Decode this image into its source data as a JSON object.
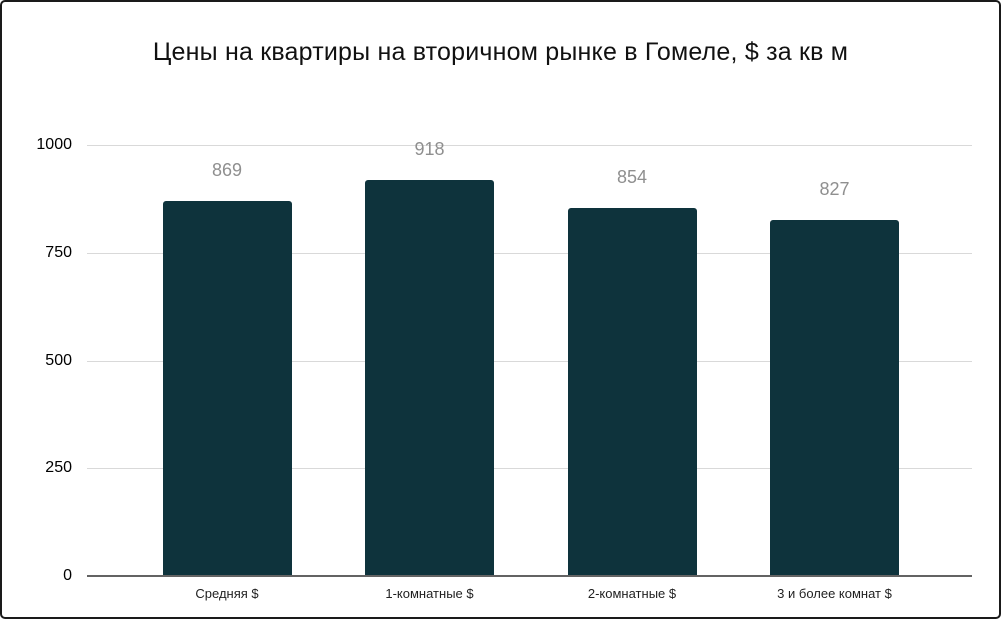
{
  "chart": {
    "title": "Цены на квартиры на вторичном рынке в Гомеле, $ за кв м"
  },
  "chart_data": {
    "type": "bar",
    "title": "Цены на квартиры на вторичном рынке в Гомеле, $ за кв м",
    "categories": [
      "Средняя $",
      "1-комнатные $",
      "2-комнатные $",
      "3 и более комнат $"
    ],
    "values": [
      869,
      918,
      854,
      827
    ],
    "value_labels": [
      "869",
      "918",
      "854",
      "827"
    ],
    "xlabel": "",
    "ylabel": "",
    "ylim": [
      0,
      1000
    ],
    "yticks": [
      0,
      250,
      500,
      750,
      1000
    ],
    "grid": true,
    "legend": false,
    "colors": {
      "bar": "#0e333c",
      "value_label": "#8f8f8f",
      "gridline": "#d9d9d9",
      "baseline": "#636363",
      "axis_text": "#000000",
      "category_text": "#1f1f1f",
      "title_text": "#111111",
      "background": "#ffffff",
      "border": "#1a1a1a"
    }
  }
}
